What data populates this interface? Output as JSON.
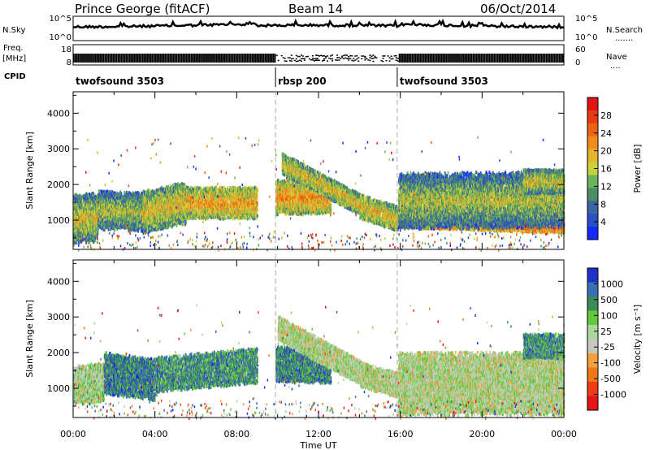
{
  "header": {
    "station": "Prince George (fitACF)",
    "beam": "Beam 14",
    "date": "06/Oct/2014"
  },
  "panel_labels": {
    "nsky": "N.Sky",
    "nsearch": "N.Search",
    "nsearch_dots": ".......",
    "freq_line1": "Freq.",
    "freq_line2": "[MHz]",
    "nave": "Nave",
    "nave_dots": "....",
    "cpid": "CPID"
  },
  "noise_axis": {
    "left_ticks": [
      "10^5",
      "10^0"
    ],
    "right_ticks": [
      "10^5",
      "10^0"
    ]
  },
  "freq_axis": {
    "left_ticks": [
      "18",
      "8"
    ],
    "right_ticks": [
      "60",
      "0"
    ]
  },
  "cpid_segments": [
    {
      "start_hour": 0,
      "end_hour": 9.9,
      "label": "twofsound 3503"
    },
    {
      "start_hour": 9.9,
      "end_hour": 15.85,
      "label": "rbsp 200"
    },
    {
      "start_hour": 15.85,
      "end_hour": 24,
      "label": "twofsound 3503"
    }
  ],
  "chart_data": [
    {
      "type": "heatmap",
      "panel": "power",
      "xlabel": "",
      "ylabel": "Slant Range [km]",
      "xlim": [
        0,
        24
      ],
      "ylim": [
        180,
        4600
      ],
      "yticks": [
        1000,
        2000,
        3000,
        4000
      ],
      "colorbar": {
        "label": "Power [dB]",
        "ticks": [
          "28",
          "24",
          "20",
          "16",
          "12",
          "8",
          "4"
        ],
        "colors": [
          "#1428ff",
          "#2850c8",
          "#3c64a0",
          "#4b8c64",
          "#6bb45a",
          "#c8d23c",
          "#e6b428",
          "#f08c1e",
          "#eb6414",
          "#e63c14",
          "#e11414"
        ]
      },
      "echo_bands": [
        {
          "from_hour": 0.0,
          "to_hour": 1.2,
          "center_start": 1050,
          "center_end": 1100,
          "width": 650,
          "level": 0.55
        },
        {
          "from_hour": 1.2,
          "to_hour": 3.4,
          "center_start": 1300,
          "center_end": 1250,
          "width": 500,
          "level": 0.5
        },
        {
          "from_hour": 3.4,
          "to_hour": 5.5,
          "center_start": 1250,
          "center_end": 1500,
          "width": 550,
          "level": 0.6
        },
        {
          "from_hour": 5.5,
          "to_hour": 9.0,
          "center_start": 1500,
          "center_end": 1500,
          "width": 400,
          "level": 0.68
        },
        {
          "from_hour": 9.9,
          "to_hour": 12.6,
          "center_start": 1650,
          "center_end": 1700,
          "width": 450,
          "level": 0.7
        },
        {
          "from_hour": 10.2,
          "to_hour": 14.2,
          "center_start": 2600,
          "center_end": 1400,
          "width": 250,
          "level": 0.6
        },
        {
          "from_hour": 14.0,
          "to_hour": 15.9,
          "center_start": 1400,
          "center_end": 1050,
          "width": 300,
          "level": 0.62
        },
        {
          "from_hour": 15.9,
          "to_hour": 24.0,
          "center_start": 1050,
          "center_end": 900,
          "width": 220,
          "level": 0.85
        },
        {
          "from_hour": 15.9,
          "to_hour": 24.0,
          "center_start": 1550,
          "center_end": 1600,
          "width": 700,
          "level": 0.5
        },
        {
          "from_hour": 22.0,
          "to_hour": 24.0,
          "center_start": 2100,
          "center_end": 2100,
          "width": 300,
          "level": 0.55
        }
      ]
    },
    {
      "type": "heatmap",
      "panel": "velocity",
      "xlabel": "Time UT",
      "ylabel": "Slant Range [km]",
      "xlim": [
        0,
        24
      ],
      "ylim": [
        180,
        4600
      ],
      "xticks": [
        "00:00",
        "04:00",
        "08:00",
        "12:00",
        "16:00",
        "20:00",
        "00:00"
      ],
      "yticks": [
        1000,
        2000,
        3000,
        4000
      ],
      "colorbar": {
        "label": "Velocity [m s⁻¹]",
        "ticks": [
          "1000",
          "500",
          "100",
          "25",
          "-25",
          "-100",
          "-500",
          "-1000"
        ],
        "colors": [
          "#1e32c8",
          "#3c6eb4",
          "#3c8c5a",
          "#64c83c",
          "#a8d8a0",
          "#c8c8c0",
          "#f0a03c",
          "#f07814",
          "#f03c14",
          "#e61414"
        ]
      },
      "echo_bands": [
        {
          "from_hour": 0.0,
          "to_hour": 1.5,
          "center_start": 1100,
          "center_end": 1200,
          "width": 500,
          "level": 0.45
        },
        {
          "from_hour": 1.5,
          "to_hour": 4.0,
          "center_start": 1450,
          "center_end": 1250,
          "width": 550,
          "level": 0.2
        },
        {
          "from_hour": 4.0,
          "to_hour": 9.0,
          "center_start": 1400,
          "center_end": 1650,
          "width": 450,
          "level": 0.25
        },
        {
          "from_hour": 9.9,
          "to_hour": 12.6,
          "center_start": 1700,
          "center_end": 1650,
          "width": 450,
          "level": 0.22
        },
        {
          "from_hour": 10.0,
          "to_hour": 14.2,
          "center_start": 2700,
          "center_end": 1400,
          "width": 300,
          "level": 0.48
        },
        {
          "from_hour": 14.0,
          "to_hour": 15.9,
          "center_start": 1400,
          "center_end": 1100,
          "width": 300,
          "level": 0.48
        },
        {
          "from_hour": 15.9,
          "to_hour": 24.0,
          "center_start": 1150,
          "center_end": 1150,
          "width": 800,
          "level": 0.48
        },
        {
          "from_hour": 22.0,
          "to_hour": 24.0,
          "center_start": 2200,
          "center_end": 2200,
          "width": 300,
          "level": 0.25
        }
      ]
    }
  ]
}
